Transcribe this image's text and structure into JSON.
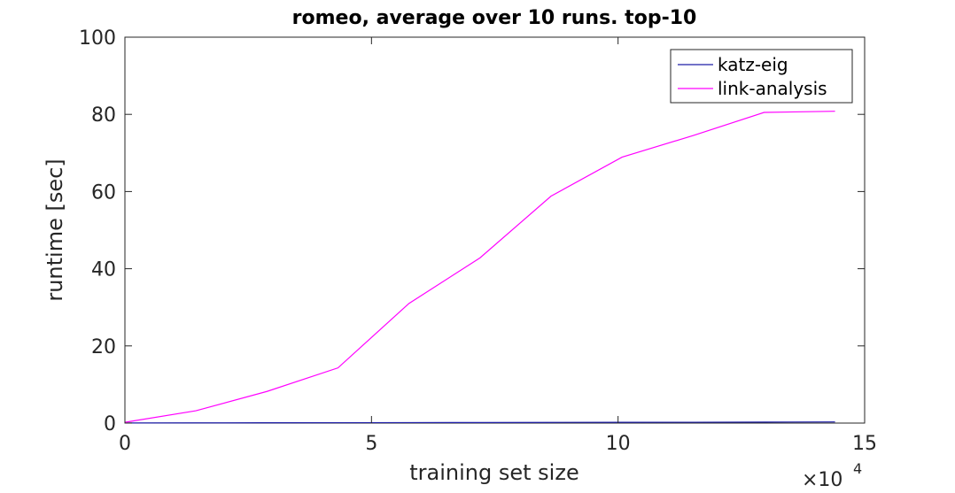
{
  "chart_data": {
    "type": "line",
    "title": "romeo, average over 10 runs. top-10",
    "xlabel": "training set size",
    "ylabel": "runtime [sec]",
    "x_multiplier_label": "×10",
    "x_multiplier_exponent": "4",
    "xlim": [
      0,
      150000
    ],
    "ylim": [
      0,
      100
    ],
    "xticks": [
      0,
      50000,
      100000,
      150000
    ],
    "xtick_labels": [
      "0",
      "5",
      "10",
      "15"
    ],
    "yticks": [
      0,
      20,
      40,
      60,
      80,
      100
    ],
    "ytick_labels": [
      "0",
      "20",
      "40",
      "60",
      "80",
      "100"
    ],
    "legend_position": "top-right",
    "grid": false,
    "series": [
      {
        "name": "katz-eig",
        "color": "#1f1fa8",
        "x": [
          0,
          14400,
          28800,
          43200,
          57600,
          72000,
          86400,
          100800,
          115200,
          129600,
          144000
        ],
        "y": [
          0.02,
          0.05,
          0.08,
          0.1,
          0.13,
          0.15,
          0.18,
          0.2,
          0.22,
          0.25,
          0.3
        ]
      },
      {
        "name": "link-analysis",
        "color": "#ff00ff",
        "x": [
          0,
          14400,
          28800,
          43200,
          57600,
          72000,
          86400,
          100800,
          115200,
          129600,
          144000
        ],
        "y": [
          0.2,
          3.2,
          8.2,
          14.3,
          31,
          42.8,
          58.8,
          68.9,
          74.5,
          80.5,
          80.8
        ]
      }
    ]
  }
}
